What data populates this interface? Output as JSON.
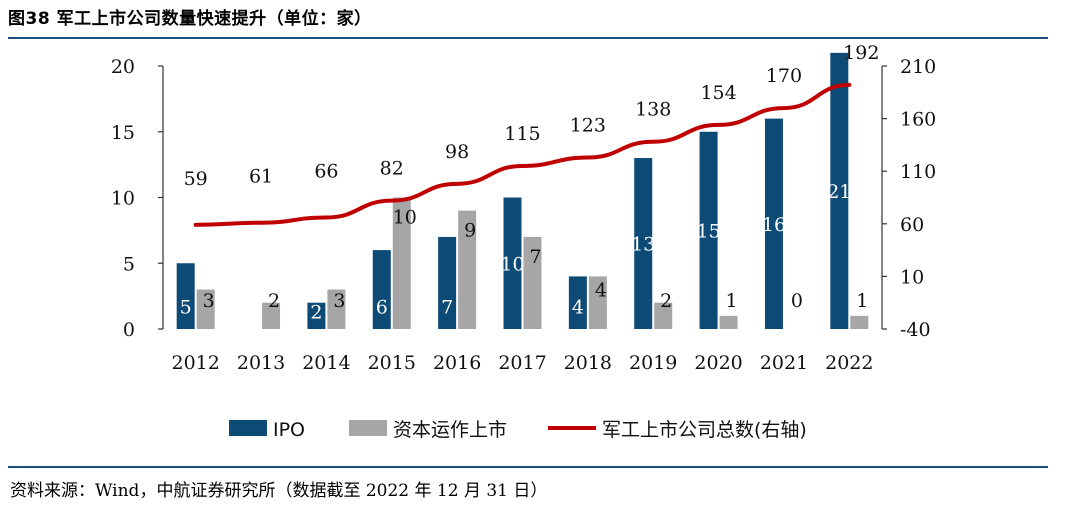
{
  "figure_title": "图38 军工上市公司数量快速提升（单位：家）",
  "source": "资料来源：Wind，中航证券研究所（数据截至 2022 年 12 月 31 日）",
  "colors": {
    "ipo": "#0d4a76",
    "capital_op": "#a6a6a6",
    "total_line": "#c00000",
    "rule": "#1a4f7a"
  },
  "chart_data": {
    "type": "bar",
    "title": "",
    "categories": [
      "2012",
      "2013",
      "2014",
      "2015",
      "2016",
      "2017",
      "2018",
      "2019",
      "2020",
      "2021",
      "2022"
    ],
    "series": [
      {
        "name": "IPO",
        "kind": "bar",
        "axis": "left",
        "values": [
          5,
          0,
          2,
          6,
          7,
          10,
          4,
          13,
          15,
          16,
          21
        ]
      },
      {
        "name": "资本运作上市",
        "kind": "bar",
        "axis": "left",
        "values": [
          3,
          2,
          3,
          10,
          9,
          7,
          4,
          2,
          1,
          0,
          1
        ]
      },
      {
        "name": "军工上市公司总数(右轴)",
        "kind": "line",
        "axis": "right",
        "values": [
          59,
          61,
          66,
          82,
          98,
          115,
          123,
          138,
          154,
          170,
          192
        ]
      }
    ],
    "ipo_labels_shown": [
      "5",
      "",
      "2",
      "6",
      "7",
      "10",
      "4",
      "13",
      "15",
      "16",
      "21"
    ],
    "capital_labels_shown": [
      "3",
      "2",
      "3",
      "10",
      "9",
      "7",
      "4",
      "2",
      "1",
      "0",
      "1"
    ],
    "total_labels_shown": [
      "59",
      "61",
      "66",
      "82",
      "98",
      "115",
      "123",
      "138",
      "154",
      "170",
      "192"
    ],
    "left_axis": {
      "ylim": [
        0,
        20
      ],
      "ticks": [
        "0",
        "5",
        "10",
        "15",
        "20"
      ]
    },
    "right_axis": {
      "ylim": [
        -40,
        210
      ],
      "ticks": [
        "-40",
        "10",
        "60",
        "110",
        "160",
        "210"
      ]
    },
    "legend": [
      "IPO",
      "资本运作上市",
      "军工上市公司总数(右轴)"
    ],
    "legend_position": "bottom"
  }
}
